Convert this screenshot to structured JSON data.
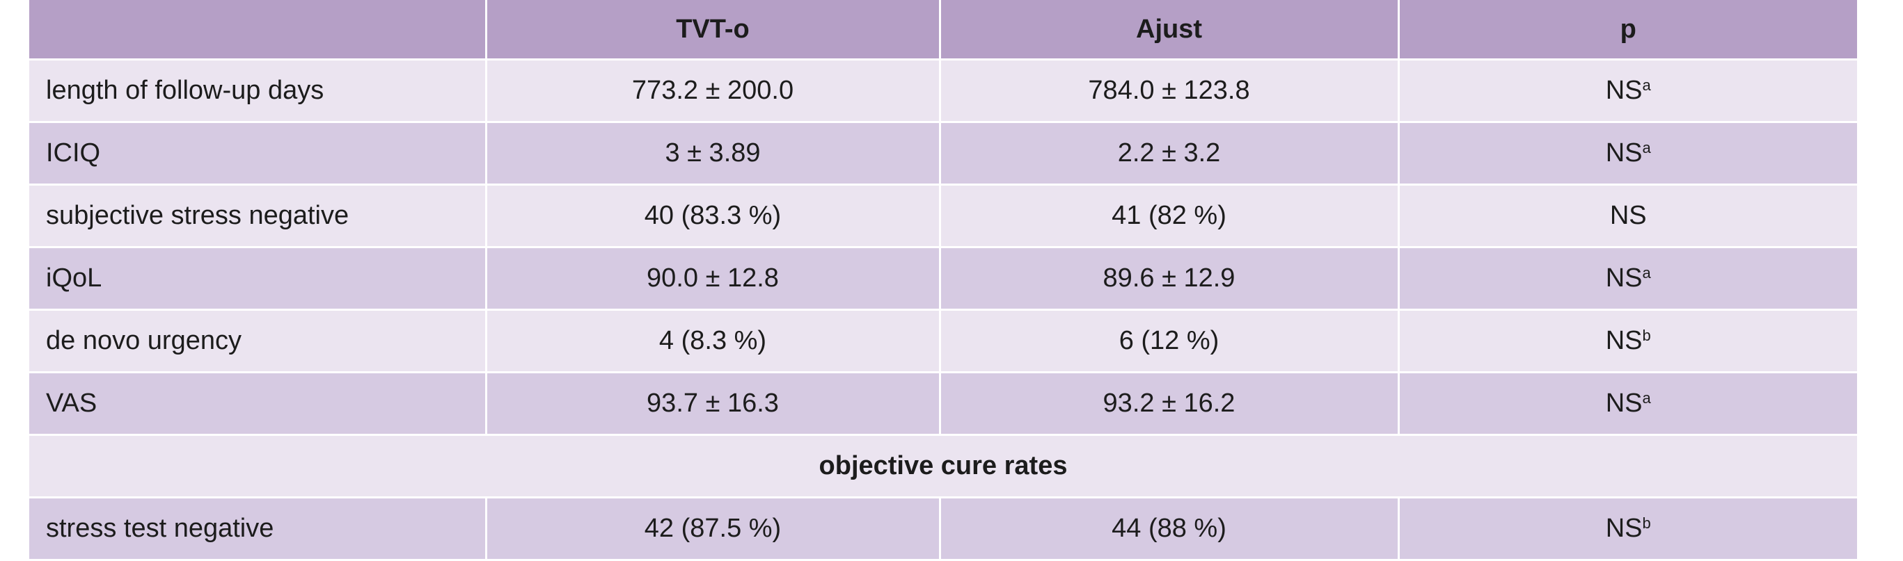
{
  "header": {
    "col0": "",
    "col1": "TVT-o",
    "col2": "Ajust",
    "col3": "p"
  },
  "rows": [
    {
      "label": "length of follow-up days",
      "tvt": "773.2 ± 200.0",
      "ajust": "784.0 ± 123.8",
      "p": "NS",
      "p_sup": "a"
    },
    {
      "label": "ICIQ",
      "tvt": "3 ± 3.89",
      "ajust": "2.2 ± 3.2",
      "p": "NS",
      "p_sup": "a"
    },
    {
      "label": "subjective stress negative",
      "tvt": "40 (83.3 %)",
      "ajust": "41 (82 %)",
      "p": "NS",
      "p_sup": ""
    },
    {
      "label": "iQoL",
      "tvt": "90.0 ± 12.8",
      "ajust": "89.6 ± 12.9",
      "p": "NS",
      "p_sup": "a"
    },
    {
      "label": "de novo urgency",
      "tvt": "4 (8.3 %)",
      "ajust": "6 (12 %)",
      "p": "NS",
      "p_sup": "b"
    },
    {
      "label": "VAS",
      "tvt": "93.7 ± 16.3",
      "ajust": "93.2 ± 16.2",
      "p": "NS",
      "p_sup": "a"
    }
  ],
  "section": {
    "title": "objective cure rates"
  },
  "section_rows": [
    {
      "label": "stress test negative",
      "tvt": "42 (87.5 %)",
      "ajust": "44 (88 %)",
      "p": "NS",
      "p_sup": "b"
    }
  ]
}
